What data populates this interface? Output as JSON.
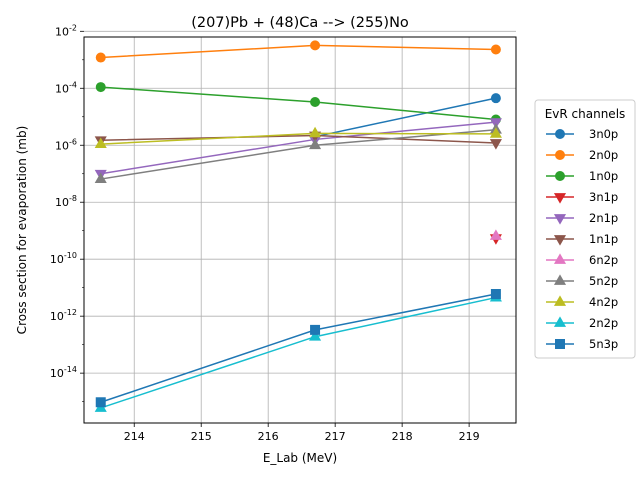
{
  "chart_data": {
    "type": "line",
    "title": "(207)Pb + (48)Ca --> (255)No",
    "xlabel": "E_Lab (MeV)",
    "ylabel": "Cross section for evaporation (mb)",
    "xlim": [
      213.25,
      219.7
    ],
    "ylim_log10": [
      -15.75,
      -2.2
    ],
    "y_scale": "log",
    "grid": true,
    "legend_title": "EvR channels",
    "legend_placement": "right",
    "x_ticks": [
      214,
      215,
      216,
      217,
      218,
      219
    ],
    "x_tick_labels": [
      "214",
      "215",
      "216",
      "217",
      "218",
      "219"
    ],
    "y_ticks_exp": [
      -14,
      -12,
      -10,
      -8,
      -6,
      -4,
      -2
    ],
    "y_tick_labels": [
      "10-14",
      "10-12",
      "10-10",
      "10-8",
      "10-6",
      "10-4",
      "10-2"
    ],
    "series": [
      {
        "name": "3n0p",
        "marker": "circle",
        "color": "#1f77b4",
        "x": [
          216.7,
          219.4
        ],
        "y": [
          2e-06,
          4.5e-05
        ]
      },
      {
        "name": "2n0p",
        "marker": "circle",
        "color": "#ff7f0e",
        "x": [
          213.5,
          216.7,
          219.4
        ],
        "y": [
          0.0012,
          0.0032,
          0.0023
        ]
      },
      {
        "name": "1n0p",
        "marker": "circle",
        "color": "#2ca02c",
        "x": [
          213.5,
          216.7,
          219.4
        ],
        "y": [
          0.00011,
          3.3e-05,
          8e-06
        ]
      },
      {
        "name": "3n1p",
        "marker": "triangle-down",
        "color": "#d62728",
        "x": [
          219.4
        ],
        "y": [
          5.5e-10
        ]
      },
      {
        "name": "2n1p",
        "marker": "triangle-down",
        "color": "#9467bd",
        "x": [
          213.5,
          216.7,
          219.4
        ],
        "y": [
          1e-07,
          1.6e-06,
          6.5e-06
        ]
      },
      {
        "name": "1n1p",
        "marker": "triangle-down",
        "color": "#8c564b",
        "x": [
          213.5,
          216.7,
          219.4
        ],
        "y": [
          1.5e-06,
          2.2e-06,
          1.2e-06
        ]
      },
      {
        "name": "6n2p",
        "marker": "triangle-up",
        "color": "#e377c2",
        "x": [
          219.4
        ],
        "y": [
          6.5e-10
        ]
      },
      {
        "name": "5n2p",
        "marker": "triangle-up",
        "color": "#7f7f7f",
        "x": [
          213.5,
          216.7,
          219.4
        ],
        "y": [
          6.5e-08,
          1e-06,
          3.5e-06
        ]
      },
      {
        "name": "4n2p",
        "marker": "triangle-up",
        "color": "#bcbd22",
        "x": [
          213.5,
          216.7,
          219.4
        ],
        "y": [
          1.1e-06,
          2.6e-06,
          2.5e-06
        ]
      },
      {
        "name": "2n2p",
        "marker": "triangle-up",
        "color": "#17becf",
        "x": [
          213.5,
          216.7,
          219.4
        ],
        "y": [
          6e-16,
          1.9e-13,
          4.5e-12
        ]
      },
      {
        "name": "5n3p",
        "marker": "square",
        "color": "#1f77b4",
        "x": [
          213.5,
          216.7,
          219.4
        ],
        "y": [
          9.5e-16,
          3.3e-13,
          6e-12
        ]
      }
    ]
  }
}
